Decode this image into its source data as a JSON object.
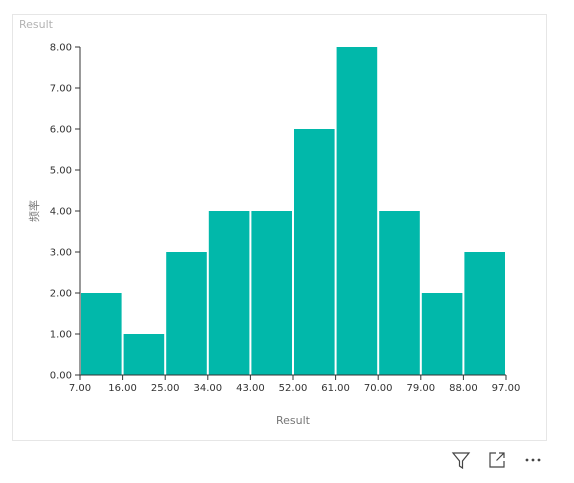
{
  "visual": {
    "title": "Result"
  },
  "chart_data": {
    "type": "bar",
    "title": "Result",
    "xlabel": "Result",
    "ylabel": "频率",
    "bin_edges": [
      7,
      16,
      25,
      34,
      43,
      52,
      61,
      70,
      79,
      88,
      97
    ],
    "x_tick_labels": [
      "7.00",
      "16.00",
      "25.00",
      "34.00",
      "43.00",
      "52.00",
      "61.00",
      "70.00",
      "79.00",
      "88.00",
      "97.00"
    ],
    "values": [
      2,
      1,
      3,
      4,
      4,
      6,
      8,
      4,
      2,
      3
    ],
    "y_ticks": [
      0,
      1,
      2,
      3,
      4,
      5,
      6,
      7,
      8
    ],
    "y_tick_labels": [
      "0.00",
      "1.00",
      "2.00",
      "3.00",
      "4.00",
      "5.00",
      "6.00",
      "7.00",
      "8.00"
    ],
    "ylim": [
      0,
      8
    ],
    "xlim": [
      7,
      97
    ],
    "bar_color": "#01B8AA",
    "grid": false,
    "legend": "none"
  },
  "toolbar": {
    "items": [
      {
        "name": "filter-icon"
      },
      {
        "name": "focus-mode-icon"
      },
      {
        "name": "more-options-icon"
      }
    ]
  }
}
